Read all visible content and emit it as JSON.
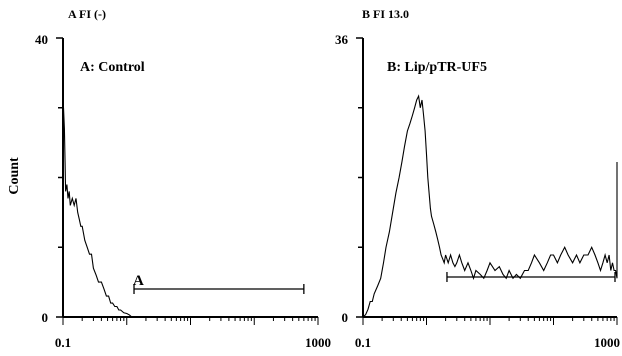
{
  "chart_data": [
    {
      "type": "histogram",
      "header": "A  FI (-)",
      "title": "A: Control",
      "ylabel": "Count",
      "xlabel": "",
      "xscale": "log",
      "xlim": [
        0.1,
        1000
      ],
      "ylim": [
        0,
        40
      ],
      "x_ticks": [
        "0.1",
        "1000"
      ],
      "y_ticks": [
        "0",
        "40"
      ],
      "gate": {
        "label": "A",
        "range": [
          1.3,
          600
        ]
      },
      "series": [
        {
          "x": [
            0.1,
            0.102,
            0.105,
            0.108,
            0.11,
            0.115,
            0.12,
            0.125,
            0.13,
            0.14,
            0.15,
            0.16,
            0.17,
            0.18,
            0.19,
            0.2,
            0.21,
            0.22,
            0.24,
            0.26,
            0.28,
            0.3,
            0.33,
            0.36,
            0.4,
            0.44,
            0.48,
            0.52,
            0.56,
            0.6,
            0.65,
            0.7,
            0.75,
            0.8,
            0.9,
            1.0,
            1.1,
            1.2
          ],
          "values": [
            26,
            30,
            27,
            22,
            18,
            19,
            17,
            18,
            16,
            17,
            16,
            17,
            15,
            14,
            13,
            13,
            12,
            11,
            10,
            9,
            9,
            7,
            6,
            5,
            5,
            4,
            3,
            3,
            2,
            2,
            1.5,
            1.5,
            1,
            1,
            0.6,
            0.5,
            0.3,
            0
          ]
        }
      ]
    },
    {
      "type": "histogram",
      "header": "B  FI  13.0",
      "title": "B: Lip/pTR-UF5",
      "ylabel": "",
      "xlabel": "",
      "xscale": "log",
      "xlim": [
        0.1,
        1000
      ],
      "ylim": [
        0,
        36
      ],
      "x_ticks": [
        "0.1",
        "1000"
      ],
      "y_ticks": [
        "0",
        "36"
      ],
      "gate": {
        "label": "",
        "range": [
          2.1,
          1000
        ]
      },
      "series": [
        {
          "x": [
            0.1,
            0.11,
            0.12,
            0.13,
            0.14,
            0.15,
            0.17,
            0.19,
            0.21,
            0.23,
            0.26,
            0.3,
            0.33,
            0.37,
            0.41,
            0.45,
            0.5,
            0.55,
            0.6,
            0.65,
            0.7,
            0.75,
            0.8,
            0.85,
            0.9,
            0.95,
            1.0,
            1.05,
            1.1,
            1.15,
            1.2,
            1.3,
            1.4,
            1.5,
            1.6,
            1.7,
            1.8,
            1.9,
            2.0,
            2.2,
            2.4,
            2.6,
            2.8,
            3.0,
            3.3,
            3.6,
            4.0,
            4.5,
            5,
            5.5,
            6,
            7,
            8,
            9,
            10,
            12,
            14,
            16,
            18,
            20,
            23,
            26,
            30,
            35,
            40,
            45,
            50,
            60,
            70,
            80,
            90,
            100,
            115,
            130,
            150,
            170,
            200,
            230,
            260,
            300,
            350,
            400,
            450,
            500,
            550,
            600,
            650,
            700,
            750,
            800,
            850,
            900,
            950,
            1000,
            1000
          ],
          "values": [
            0,
            0.3,
            1,
            2,
            2,
            3,
            4,
            5,
            7,
            9,
            11,
            14,
            16,
            18,
            20,
            22,
            24,
            25,
            26,
            27,
            28,
            28.5,
            27,
            28,
            26,
            24,
            21,
            18,
            16,
            14,
            13,
            12,
            11,
            10,
            9,
            8,
            7.5,
            7,
            8,
            7,
            8,
            7,
            6.5,
            7,
            8,
            7,
            6,
            7,
            6,
            5,
            6,
            5.5,
            5,
            6,
            7,
            6,
            6.5,
            5.5,
            5,
            6,
            5,
            5.5,
            5,
            6,
            6,
            7,
            8,
            7,
            6,
            7,
            8,
            8,
            7,
            8,
            9,
            8,
            7,
            8,
            7,
            8,
            8,
            9,
            8,
            7,
            6,
            7,
            8,
            7,
            8,
            6,
            7,
            6,
            6,
            5,
            20
          ]
        }
      ]
    }
  ]
}
